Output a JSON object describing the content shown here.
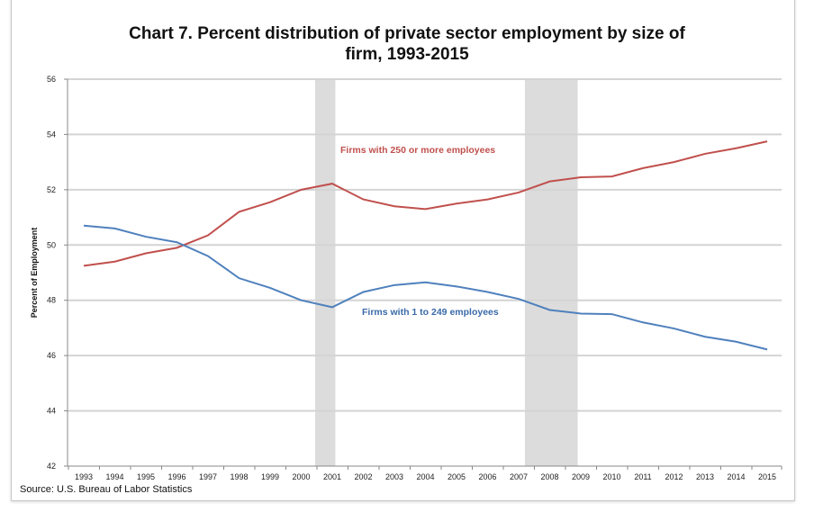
{
  "chart_data": {
    "type": "line",
    "title_line1": "Chart 7. Percent distribution of private sector employment by size of",
    "title_line2": "firm, 1993-2015",
    "ylabel": "Percent of Employment",
    "xlabel": "",
    "ylim": [
      42,
      56
    ],
    "yticks": [
      42,
      44,
      46,
      48,
      50,
      52,
      54,
      56
    ],
    "x": [
      1993,
      1994,
      1995,
      1996,
      1997,
      1998,
      1999,
      2000,
      2001,
      2002,
      2003,
      2004,
      2005,
      2006,
      2007,
      2008,
      2009,
      2010,
      2011,
      2012,
      2013,
      2014,
      2015
    ],
    "grid": true,
    "recessions": [
      [
        2000.45,
        2001.1
      ],
      [
        2007.2,
        2008.9
      ]
    ],
    "series": [
      {
        "name": "Firms with 250 or more employees",
        "color": "#c0504d",
        "values": [
          49.25,
          49.4,
          49.7,
          49.9,
          50.35,
          51.2,
          51.55,
          52.0,
          52.22,
          51.65,
          51.4,
          51.3,
          51.5,
          51.65,
          51.9,
          52.3,
          52.45,
          52.48,
          52.78,
          53.0,
          53.3,
          53.5,
          53.75
        ]
      },
      {
        "name": "Firms with 1 to 249 employees",
        "color": "#4f81bd",
        "values": [
          50.7,
          50.6,
          50.3,
          50.1,
          49.6,
          48.8,
          48.45,
          48.0,
          47.75,
          48.3,
          48.55,
          48.65,
          48.5,
          48.3,
          48.05,
          47.65,
          47.52,
          47.5,
          47.2,
          46.98,
          46.68,
          46.5,
          46.22
        ]
      }
    ],
    "source": "Source: U.S. Bureau of Labor Statistics"
  }
}
